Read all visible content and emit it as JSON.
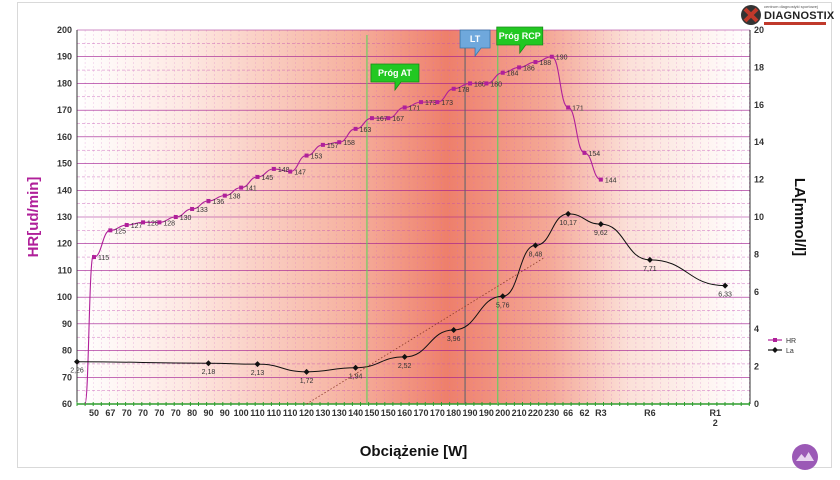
{
  "logo": {
    "text": "DIAGNOSTIX",
    "small": "centrum diagnostyki sportowej"
  },
  "chart_data": {
    "type": "line",
    "xlabel": "Obciążenie [W]",
    "ylabel_left": "HR[ud/min]",
    "ylabel_right": "LA[mmol/l]",
    "ylim_left": [
      60,
      200
    ],
    "yticks_left": [
      60,
      70,
      80,
      90,
      100,
      110,
      120,
      130,
      140,
      150,
      160,
      170,
      180,
      190,
      200
    ],
    "ylim_right": [
      0,
      20
    ],
    "yticks_right": [
      0,
      2,
      4,
      6,
      8,
      10,
      12,
      14,
      16,
      18,
      20
    ],
    "x_categories": [
      "50",
      "67",
      "70",
      "70",
      "70",
      "70",
      "80",
      "90",
      "90",
      "100",
      "110",
      "110",
      "110",
      "120",
      "130",
      "130",
      "140",
      "150",
      "150",
      "160",
      "170",
      "170",
      "180",
      "190",
      "190",
      "200",
      "210",
      "220",
      "230",
      "66",
      "62",
      "R3",
      "",
      "",
      "R6",
      "",
      "",
      "",
      "R12"
    ],
    "grid": true,
    "legend_position": "right",
    "series": [
      {
        "name": "HR",
        "color": "#b0209a",
        "labels": [
          "115",
          "125",
          "127",
          "128",
          "128",
          "130",
          "133",
          "136",
          "138",
          "141",
          "145",
          "148",
          "147",
          "153",
          "157",
          "158",
          "163",
          "167",
          "167",
          "171",
          "173",
          "173",
          "178",
          "180",
          "180",
          "184",
          "186",
          "188",
          "190",
          "171",
          "154",
          "144"
        ]
      },
      {
        "name": "La",
        "color": "#000000",
        "labels": [
          "2,26",
          "2,18",
          "2,13",
          "1,72",
          "1,94",
          "2,52",
          "3,96",
          "5,76",
          "8,48",
          "10,17",
          "9,62",
          "7,71",
          "6,33"
        ]
      }
    ],
    "thresholds": [
      {
        "label": "Próg AT",
        "x_category": "150"
      },
      {
        "label": "LT",
        "x_category": "190"
      },
      {
        "label": "Próg RCP",
        "x_category": "210"
      }
    ],
    "legend": [
      "HR",
      "La"
    ]
  }
}
